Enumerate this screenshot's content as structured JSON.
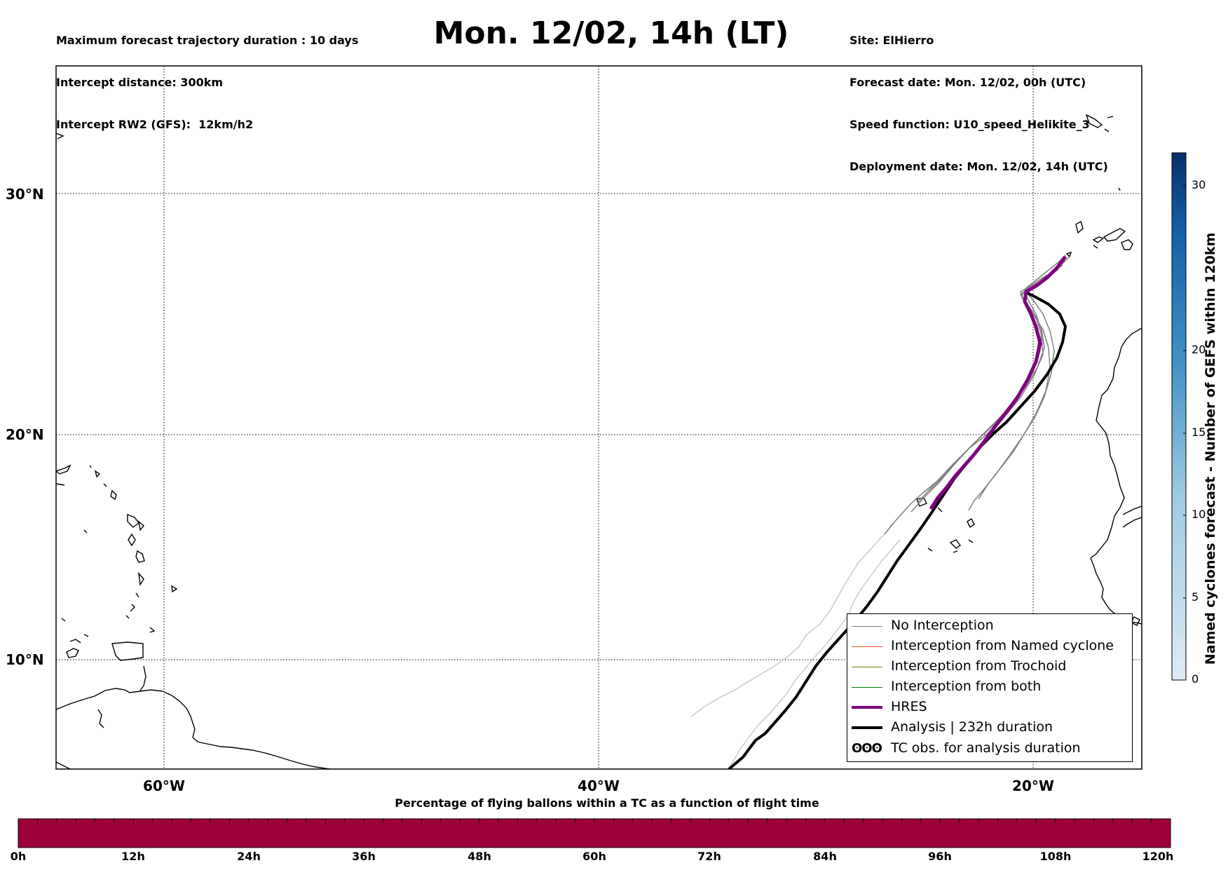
{
  "header": {
    "left_lines": [
      "Maximum forecast trajectory duration : 10 days",
      "Intercept distance: 300km",
      "Intercept RW2 (GFS):  12km/h2"
    ],
    "right_lines": [
      "Site: ElHierro",
      "Forecast date: Mon. 12/02, 00h (UTC)",
      "Speed function: U10_speed_Helikite_3",
      "Deployment date: Mon. 12/02, 14h (UTC)"
    ],
    "title": "Mon. 12/02, 14h (LT)"
  },
  "map": {
    "lon_range": [
      -65,
      -15
    ],
    "lat_range": [
      5,
      34
    ],
    "lat_ticks": [
      {
        "value": 30,
        "label": "30°N"
      },
      {
        "value": 20,
        "label": "20°N"
      },
      {
        "value": 10,
        "label": "10°N"
      }
    ],
    "lon_ticks": [
      {
        "value": -60,
        "label": "60°W"
      },
      {
        "value": -40,
        "label": "40°W"
      },
      {
        "value": -20,
        "label": "20°W"
      }
    ],
    "colors": {
      "no_interception": "#808080",
      "named_cyclone": "#e8541e",
      "trochoid": "#808000",
      "both": "#008000",
      "hres": "#800080",
      "analysis": "#000000",
      "faded": "#c8c8c8"
    }
  },
  "legend": {
    "items": [
      {
        "label": "No Interception",
        "color": "#808080",
        "width": 1.5
      },
      {
        "label": "Interception from Named cyclone",
        "color": "#e8541e",
        "width": 1.5
      },
      {
        "label": "Interception from Trochoid",
        "color": "#808000",
        "width": 1.5
      },
      {
        "label": "Interception from both",
        "color": "#008000",
        "width": 1.5
      },
      {
        "label": "HRES",
        "color": "#800080",
        "width": 4
      },
      {
        "label": "Analysis | 232h duration",
        "color": "#000000",
        "width": 4
      }
    ],
    "tc_obs_symbol": "ʘʘʘ",
    "tc_obs_label": "TC obs. for analysis duration"
  },
  "colorbar": {
    "label": "Named cyclones forecast - Number of GEFS within 120km",
    "ticks": [
      "0",
      "5",
      "10",
      "15",
      "20",
      "30"
    ],
    "max": 32
  },
  "timebar": {
    "title": "Percentage of flying ballons within a TC as a function of flight time",
    "ticks": [
      "0h",
      "12h",
      "24h",
      "36h",
      "48h",
      "60h",
      "72h",
      "84h",
      "96h",
      "108h",
      "120h"
    ],
    "color": "#9e003a"
  }
}
